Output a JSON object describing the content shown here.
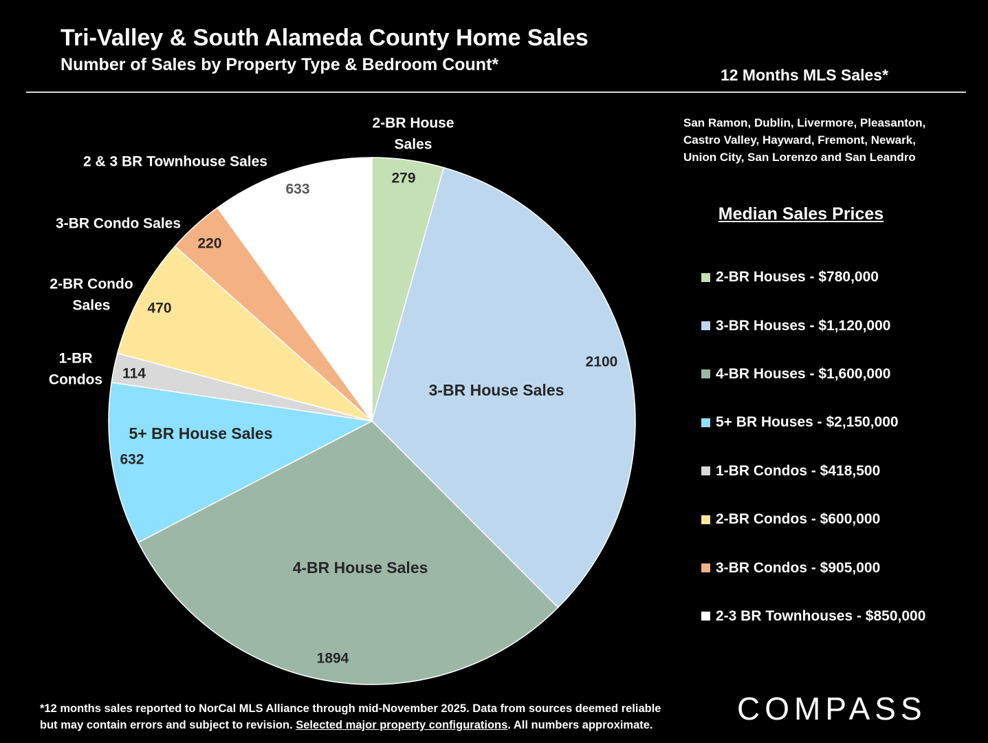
{
  "header": {
    "title": "Tri-Valley & South Alameda County Home Sales",
    "subtitle": "Number of Sales by Property Type & Bedroom Count*",
    "period": "12 Months MLS Sales*"
  },
  "cities": [
    "San Ramon, Dublin, Livermore, Pleasanton,",
    "Castro Valley, Hayward, Fremont, Newark,",
    "Union City, San Lorenzo and San Leandro"
  ],
  "legend": {
    "title": "Median Sales Prices",
    "items": [
      {
        "label": "2-BR Houses - $780,000",
        "color": "#c5e0b4"
      },
      {
        "label": "3-BR Houses - $1,120,000",
        "color": "#bdd7ee"
      },
      {
        "label": "4-BR Houses - $1,600,000",
        "color": "#9db7a7"
      },
      {
        "label": "5+ BR Houses - $2,150,000",
        "color": "#8ee0ff"
      },
      {
        "label": "1-BR Condos - $418,500",
        "color": "#d9d9d9"
      },
      {
        "label": "2-BR Condos - $600,000",
        "color": "#ffe699"
      },
      {
        "label": "3-BR Condos - $905,000",
        "color": "#f4b183"
      },
      {
        "label": "2-3 BR Townhouses - $850,000",
        "color": "#ffffff"
      }
    ]
  },
  "chart_data": {
    "type": "pie",
    "slices": [
      {
        "label": "2-BR House Sales",
        "value": 279,
        "color": "#c5e0b4"
      },
      {
        "label": "3-BR House Sales",
        "value": 2100,
        "color": "#bdd7ee"
      },
      {
        "label": "4-BR House Sales",
        "value": 1894,
        "color": "#9db7a7"
      },
      {
        "label": "5+ BR House Sales",
        "value": 632,
        "color": "#8ee0ff"
      },
      {
        "label": "1-BR Condos",
        "value": 114,
        "color": "#d9d9d9"
      },
      {
        "label": "2-BR Condo Sales",
        "value": 470,
        "color": "#ffe699"
      },
      {
        "label": "3-BR Condo Sales",
        "value": 220,
        "color": "#f4b183"
      },
      {
        "label": "2 & 3 BR Townhouse Sales",
        "value": 633,
        "color": "#ffffff"
      }
    ]
  },
  "footnote": {
    "line1": "*12 months sales reported to NorCal MLS Alliance through mid-November 2025. Data from sources deemed reliable",
    "line2_start": "but may contain errors and subject to revision. ",
    "line2_link": "Selected major property configurations",
    "line2_end": ". All numbers approximate."
  },
  "brand": {
    "logo": "COMPASS"
  }
}
